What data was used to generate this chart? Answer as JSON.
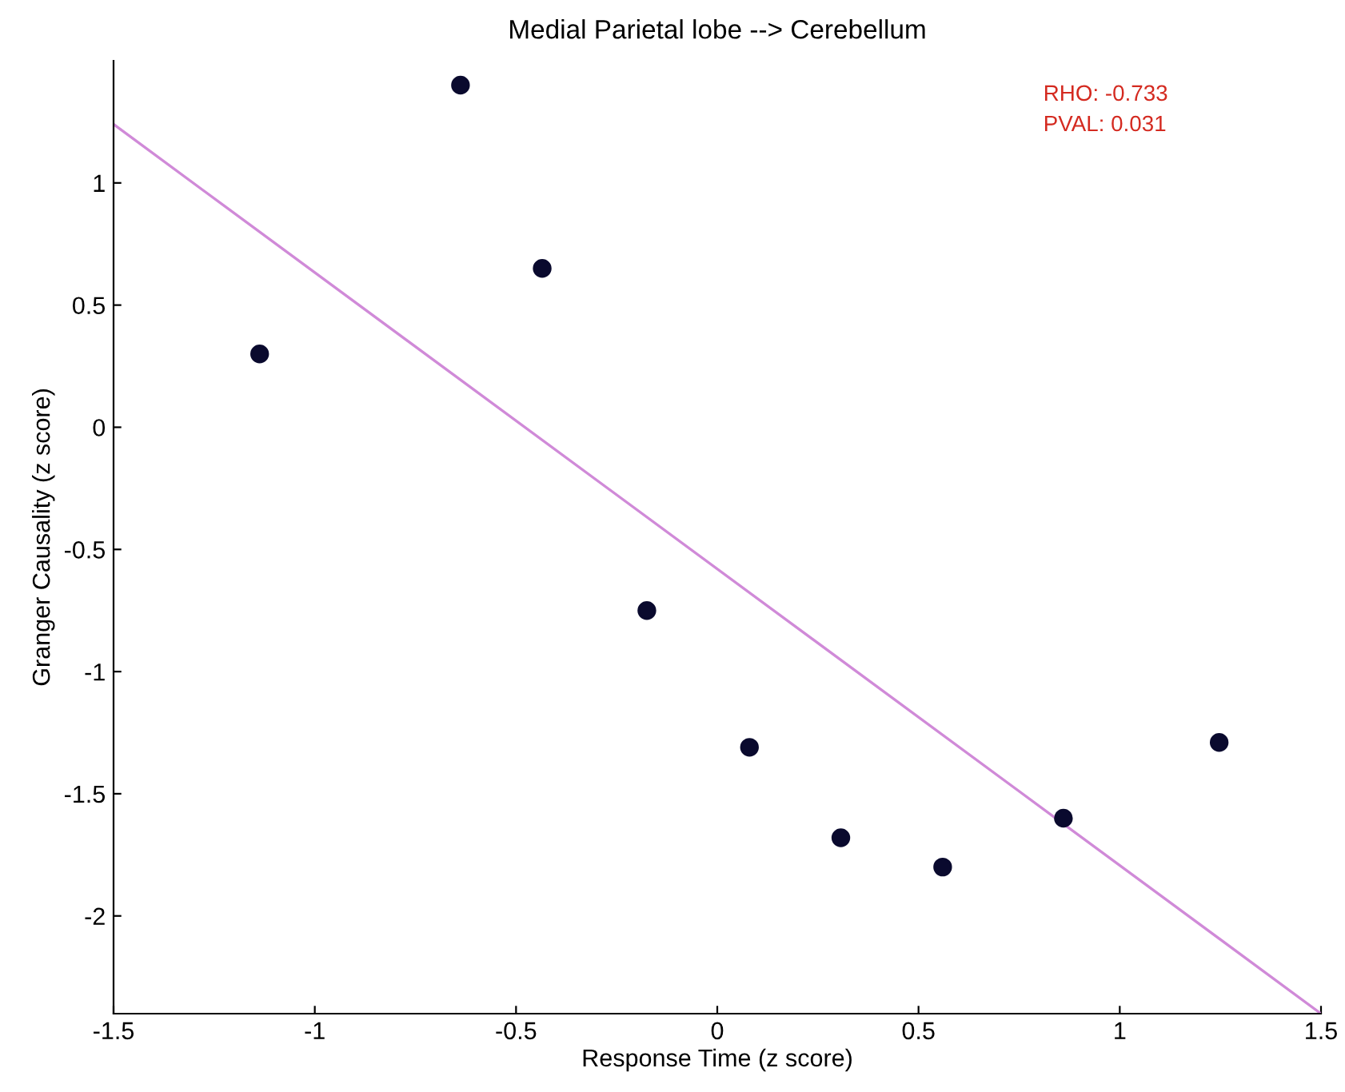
{
  "chart_data": {
    "type": "scatter",
    "title": "Medial Parietal lobe --> Cerebellum",
    "xlabel": "Response Time (z score)",
    "ylabel": "Granger Causality (z score)",
    "series": [
      {
        "type": "scatter",
        "color": "#0a0a2e",
        "x": [
          -1.137,
          -0.638,
          -0.435,
          -0.175,
          0.08,
          0.307,
          0.56,
          0.86,
          1.247
        ],
        "values": [
          0.3,
          1.4,
          0.65,
          -0.75,
          -1.31,
          -1.68,
          -1.8,
          -1.6,
          -1.29
        ],
        "marker": "circle"
      },
      {
        "type": "line",
        "color": "#d08ad8",
        "x": [
          -1.5,
          1.5
        ],
        "values": [
          1.24,
          -2.4
        ],
        "marker": "none",
        "line_style": "solid"
      }
    ],
    "annotations": [
      "RHO: -0.733",
      "PVAL: 0.031"
    ],
    "xlim": [
      -1.5,
      1.5
    ],
    "ylim": [
      -2.4,
      1.5
    ],
    "xticks": [
      -1.5,
      -1,
      -0.5,
      0,
      0.5,
      1,
      1.5
    ],
    "yticks": [
      -2,
      -1.5,
      -1,
      -0.5,
      0,
      0.5,
      1
    ],
    "grid": false,
    "legend": false
  }
}
